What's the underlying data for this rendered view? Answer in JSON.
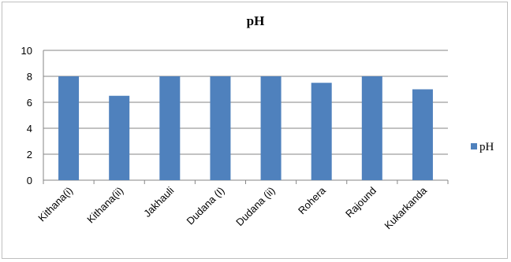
{
  "chart_data": {
    "type": "bar",
    "title": "pH",
    "categories": [
      "Kithana(i)",
      "Kithana(ii)",
      "Jakhauli",
      "Dudana (I)",
      "Dudana (ii)",
      "Rohera",
      "Rajound",
      "Kukarkanda"
    ],
    "series": [
      {
        "name": "pH",
        "values": [
          8,
          6.5,
          8,
          8,
          8,
          7.5,
          8,
          7
        ],
        "color": "#4f81bd"
      }
    ],
    "yticks": [
      "0",
      "2",
      "4",
      "6",
      "8",
      "10"
    ],
    "ylim": [
      0,
      10
    ],
    "grid": true,
    "legend": "right"
  }
}
